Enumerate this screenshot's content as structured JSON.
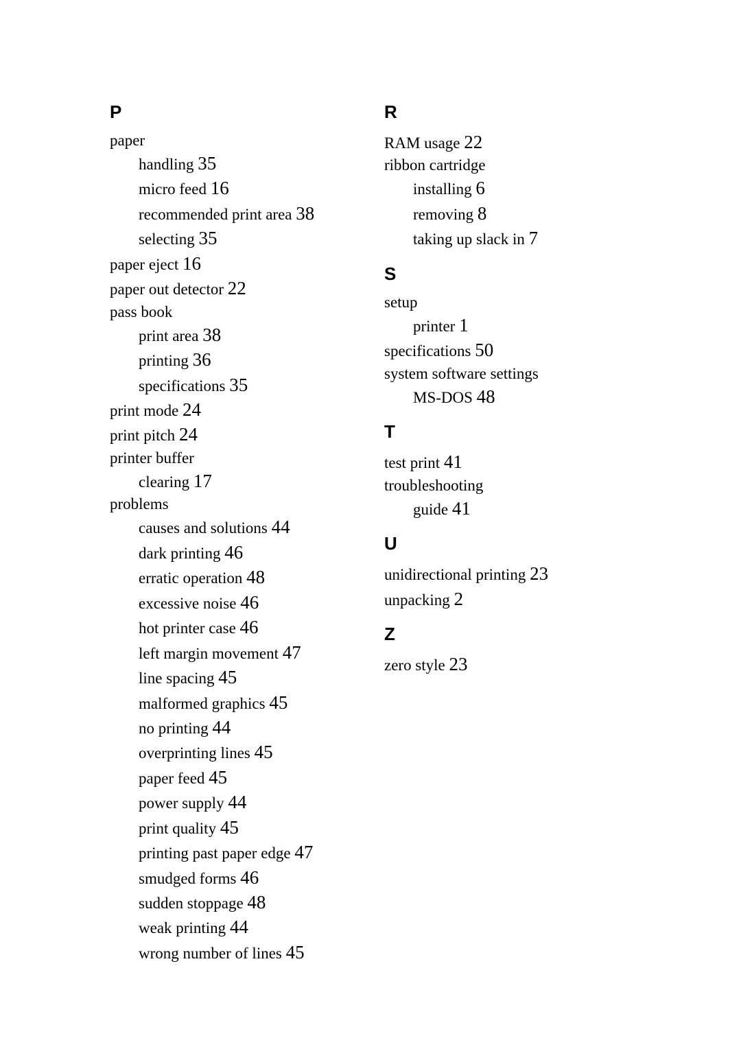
{
  "columns": [
    {
      "sections": [
        {
          "letter": "P",
          "entries": [
            {
              "text": "paper",
              "page": null
            },
            {
              "text": "handling",
              "page": "35",
              "sub": true
            },
            {
              "text": "micro feed",
              "page": "16",
              "sub": true
            },
            {
              "text": "recommended print area",
              "page": "38",
              "sub": true
            },
            {
              "text": "selecting",
              "page": "35",
              "sub": true
            },
            {
              "text": "paper eject",
              "page": "16"
            },
            {
              "text": "paper out detector",
              "page": "22"
            },
            {
              "text": "pass book",
              "page": null
            },
            {
              "text": "print area",
              "page": "38",
              "sub": true
            },
            {
              "text": "printing",
              "page": "36",
              "sub": true
            },
            {
              "text": "specifications",
              "page": "35",
              "sub": true
            },
            {
              "text": "print mode",
              "page": "24"
            },
            {
              "text": "print pitch",
              "page": "24"
            },
            {
              "text": "printer buffer",
              "page": null
            },
            {
              "text": "clearing",
              "page": "17",
              "sub": true
            },
            {
              "text": "problems",
              "page": null
            },
            {
              "text": "causes and solutions",
              "page": "44",
              "sub": true
            },
            {
              "text": "dark printing",
              "page": "46",
              "sub": true
            },
            {
              "text": "erratic operation",
              "page": "48",
              "sub": true
            },
            {
              "text": "excessive noise",
              "page": "46",
              "sub": true
            },
            {
              "text": "hot printer case",
              "page": "46",
              "sub": true
            },
            {
              "text": "left margin movement",
              "page": "47",
              "sub": true
            },
            {
              "text": "line spacing",
              "page": "45",
              "sub": true
            },
            {
              "text": "malformed graphics",
              "page": "45",
              "sub": true
            },
            {
              "text": "no printing",
              "page": "44",
              "sub": true
            },
            {
              "text": "overprinting lines",
              "page": "45",
              "sub": true
            },
            {
              "text": "paper feed",
              "page": "45",
              "sub": true
            },
            {
              "text": "power supply",
              "page": "44",
              "sub": true
            },
            {
              "text": "print quality",
              "page": "45",
              "sub": true
            },
            {
              "text": "printing past paper edge",
              "page": "47",
              "sub": true
            },
            {
              "text": "smudged forms",
              "page": "46",
              "sub": true
            },
            {
              "text": "sudden stoppage",
              "page": "48",
              "sub": true
            },
            {
              "text": "weak printing",
              "page": "44",
              "sub": true
            },
            {
              "text": "wrong number of lines",
              "page": "45",
              "sub": true
            }
          ]
        }
      ]
    },
    {
      "sections": [
        {
          "letter": "R",
          "entries": [
            {
              "text": "RAM usage",
              "page": "22"
            },
            {
              "text": "ribbon cartridge",
              "page": null
            },
            {
              "text": "installing",
              "page": "6",
              "sub": true
            },
            {
              "text": "removing",
              "page": "8",
              "sub": true
            },
            {
              "text": "taking up slack in",
              "page": "7",
              "sub": true
            }
          ]
        },
        {
          "letter": "S",
          "entries": [
            {
              "text": "setup",
              "page": null
            },
            {
              "text": "printer",
              "page": "1",
              "sub": true
            },
            {
              "text": "specifications",
              "page": "50"
            },
            {
              "text": "system software settings",
              "page": null
            },
            {
              "text": "MS-DOS",
              "page": "48",
              "sub": true
            }
          ]
        },
        {
          "letter": "T",
          "entries": [
            {
              "text": "test print",
              "page": "41"
            },
            {
              "text": "troubleshooting",
              "page": null
            },
            {
              "text": "guide",
              "page": "41",
              "sub": true
            }
          ]
        },
        {
          "letter": "U",
          "entries": [
            {
              "text": "unidirectional printing",
              "page": "23"
            },
            {
              "text": "unpacking",
              "page": "2"
            }
          ]
        },
        {
          "letter": "Z",
          "entries": [
            {
              "text": "zero style",
              "page": "23"
            }
          ]
        }
      ]
    }
  ]
}
